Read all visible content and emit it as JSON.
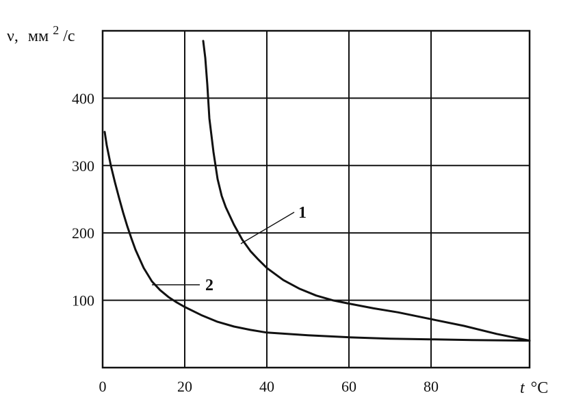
{
  "chart_data": {
    "type": "line",
    "title": "",
    "ylabel": "ν, мм²/с",
    "ylabel_parts": {
      "symbol": "ν,",
      "unit": "мм",
      "power": "2",
      "per": "/с"
    },
    "xlabel": "t,°C",
    "xlabel_parts": {
      "var": "t",
      "unit": "°C"
    },
    "xlim": [
      0,
      104
    ],
    "ylim": [
      0,
      500
    ],
    "xticks": [
      0,
      20,
      40,
      60,
      80
    ],
    "yticks": [
      100,
      200,
      300,
      400
    ],
    "grid": true,
    "series": [
      {
        "name": "1",
        "points": [
          [
            24.5,
            485
          ],
          [
            25,
            460
          ],
          [
            25.5,
            420
          ],
          [
            26,
            370
          ],
          [
            27,
            320
          ],
          [
            28,
            280
          ],
          [
            29,
            255
          ],
          [
            30,
            238
          ],
          [
            32,
            212
          ],
          [
            34,
            190
          ],
          [
            36,
            173
          ],
          [
            38,
            160
          ],
          [
            40,
            148
          ],
          [
            44,
            130
          ],
          [
            48,
            117
          ],
          [
            52,
            107
          ],
          [
            56,
            100
          ],
          [
            60,
            95
          ],
          [
            66,
            88
          ],
          [
            72,
            82
          ],
          [
            80,
            72
          ],
          [
            88,
            62
          ],
          [
            96,
            50
          ],
          [
            104,
            40
          ]
        ]
      },
      {
        "name": "2",
        "points": [
          [
            0.5,
            350
          ],
          [
            1,
            330
          ],
          [
            2,
            300
          ],
          [
            3,
            275
          ],
          [
            4,
            252
          ],
          [
            5,
            230
          ],
          [
            6,
            210
          ],
          [
            7,
            192
          ],
          [
            8,
            175
          ],
          [
            10,
            148
          ],
          [
            12,
            128
          ],
          [
            14,
            115
          ],
          [
            16,
            105
          ],
          [
            18,
            97
          ],
          [
            20,
            90
          ],
          [
            24,
            78
          ],
          [
            28,
            68
          ],
          [
            32,
            61
          ],
          [
            36,
            56
          ],
          [
            40,
            52
          ],
          [
            50,
            48
          ],
          [
            60,
            45
          ],
          [
            70,
            43
          ],
          [
            80,
            42
          ],
          [
            90,
            41
          ],
          [
            104,
            40
          ]
        ]
      }
    ],
    "annotations": [
      {
        "text": "1",
        "series": "1"
      },
      {
        "text": "2",
        "series": "2"
      }
    ]
  }
}
